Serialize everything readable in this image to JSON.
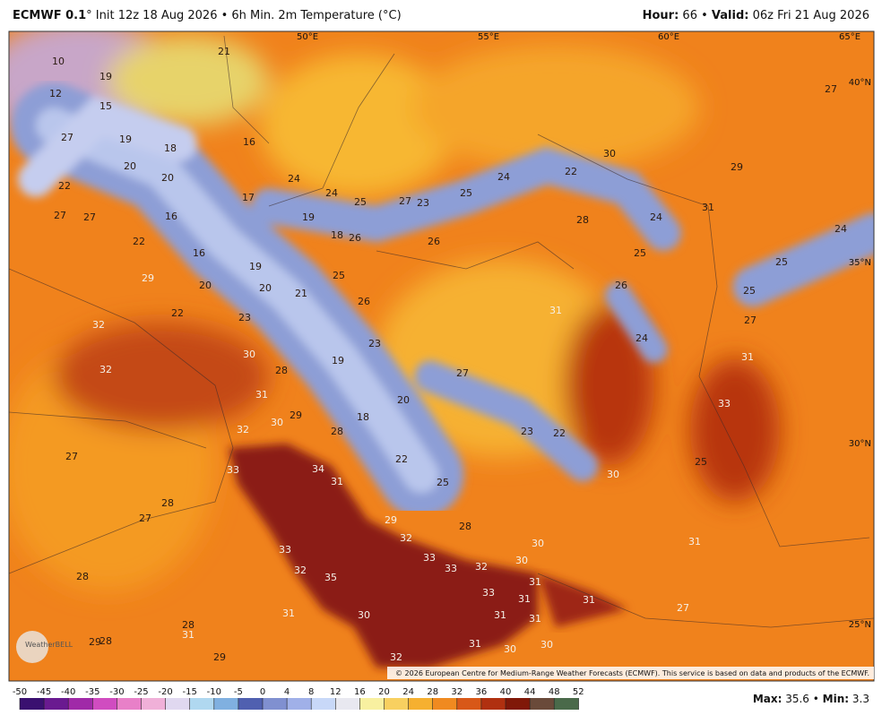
{
  "header": {
    "model": "ECMWF 0.1",
    "title": "° Init 12z 18 Aug 2026 • 6h Min. 2m Temperature (°C)",
    "hour_label": "Hour:",
    "hour": "66 •",
    "valid_label": "Valid:",
    "valid": "06z Fri 21 Aug 2026"
  },
  "map": {
    "lon_labels": [
      "50°E",
      "55°E",
      "60°E",
      "65°E"
    ],
    "lat_labels": [
      "40°N",
      "35°N",
      "30°N",
      "25°N"
    ],
    "values": [
      10,
      21,
      19,
      12,
      15,
      27,
      19,
      18,
      16,
      20,
      20,
      22,
      24,
      24,
      25,
      27,
      23,
      25,
      24,
      22,
      30,
      29,
      27,
      17,
      16,
      27,
      27,
      22,
      19,
      18,
      26,
      26,
      28,
      24,
      31,
      24,
      25,
      25,
      16,
      19,
      25,
      20,
      20,
      21,
      29,
      26,
      25,
      22,
      23,
      26,
      31,
      27,
      32,
      23,
      24,
      30,
      28,
      19,
      31,
      32,
      27,
      31,
      20,
      33,
      30,
      29,
      18,
      32,
      28,
      23,
      22,
      27,
      22,
      25,
      33,
      34,
      31,
      30,
      25,
      28,
      27,
      29,
      28,
      32,
      30,
      31,
      33,
      33,
      33,
      32,
      30,
      32,
      28,
      35,
      31,
      33,
      31,
      31,
      27,
      31,
      30,
      31,
      31,
      28,
      31,
      29,
      28,
      31,
      30,
      30,
      32,
      29
    ]
  },
  "copyright": "© 2026 European Centre for Medium-Range Weather Forecasts (ECMWF). This service is based on data and products of the ECMWF.",
  "logo": "WeatherBELL",
  "colorbar": {
    "ticks": [
      -50,
      -45,
      -40,
      -35,
      -30,
      -25,
      -20,
      -15,
      -10,
      -5,
      0,
      4,
      8,
      12,
      16,
      20,
      24,
      28,
      32,
      36,
      40,
      44,
      48,
      52
    ]
  },
  "footer": {
    "max_label": "Max:",
    "max": "35.6 •",
    "min_label": "Min:",
    "min": "3.3"
  }
}
